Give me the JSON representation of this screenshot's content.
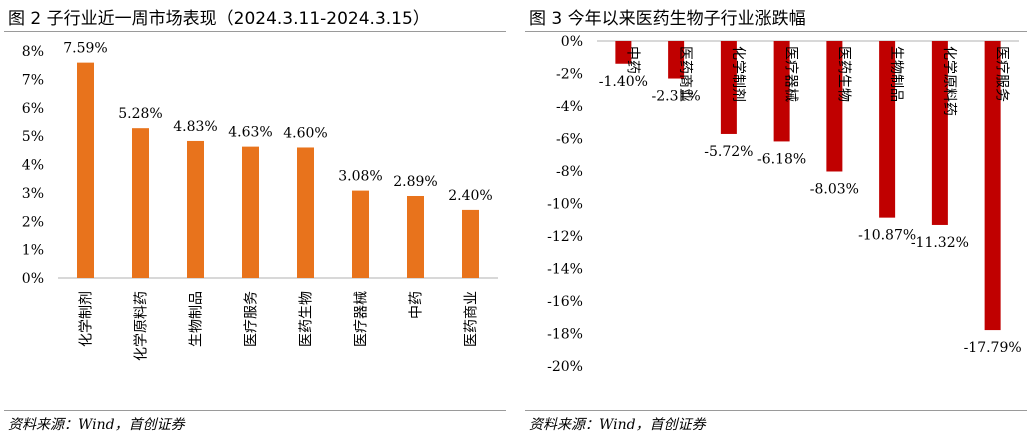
{
  "left": {
    "title": "图 2 子行业近一周市场表现（2024.3.11-2024.3.15）",
    "source": "资料来源：Wind，首创证券"
  },
  "right": {
    "title": "图 3 今年以来医药生物子行业涨跌幅",
    "source": "资料来源：Wind，首创证券"
  },
  "colors": {
    "left_bar": "#e8731c",
    "right_bar": "#c00000",
    "axis": "#b0b0b0"
  },
  "chart_data": [
    {
      "type": "bar",
      "title": "图 2 子行业近一周市场表现（2024.3.11-2024.3.15）",
      "categories": [
        "化学制剂",
        "化学原料药",
        "生物制品",
        "医疗服务",
        "医药生物",
        "医疗器械",
        "中药",
        "医药商业"
      ],
      "values": [
        7.59,
        5.28,
        4.83,
        4.63,
        4.6,
        3.08,
        2.89,
        2.4
      ],
      "value_labels": [
        "7.59%",
        "5.28%",
        "4.83%",
        "4.63%",
        "4.60%",
        "3.08%",
        "2.89%",
        "2.40%"
      ],
      "ylim": [
        0,
        8
      ],
      "yticks": [
        "0%",
        "1%",
        "2%",
        "3%",
        "4%",
        "5%",
        "6%",
        "7%",
        "8%"
      ],
      "xlabel": "",
      "ylabel": "",
      "grid": false,
      "legend": "none"
    },
    {
      "type": "bar",
      "title": "图 3 今年以来医药生物子行业涨跌幅",
      "categories": [
        "中药",
        "医药商业",
        "化学制剂",
        "医疗器械",
        "医药生物",
        "生物制品",
        "化学原料药",
        "医疗服务"
      ],
      "values": [
        -1.4,
        -2.31,
        -5.72,
        -6.18,
        -8.03,
        -10.87,
        -11.32,
        -17.79
      ],
      "value_labels": [
        "-1.40%",
        "-2.31%",
        "-5.72%",
        "-6.18%",
        "-8.03%",
        "-10.87%",
        "-11.32%",
        "-17.79%"
      ],
      "ylim": [
        -20,
        0
      ],
      "yticks": [
        "0%",
        "-2%",
        "-4%",
        "-6%",
        "-8%",
        "-10%",
        "-12%",
        "-14%",
        "-16%",
        "-18%",
        "-20%"
      ],
      "xlabel": "",
      "ylabel": "",
      "grid": false,
      "legend": "none"
    }
  ]
}
